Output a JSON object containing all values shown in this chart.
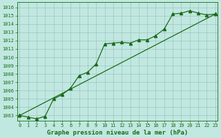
{
  "xlabel": "Graphe pression niveau de la mer (hPa)",
  "x_ticks": [
    0,
    1,
    2,
    3,
    4,
    5,
    6,
    7,
    8,
    9,
    10,
    11,
    12,
    13,
    14,
    15,
    16,
    17,
    18,
    19,
    20,
    21,
    22,
    23
  ],
  "y_ticks": [
    1003,
    1004,
    1005,
    1006,
    1007,
    1008,
    1009,
    1010,
    1011,
    1012,
    1013,
    1014,
    1015,
    1016
  ],
  "ylim": [
    1002.4,
    1016.6
  ],
  "xlim": [
    -0.3,
    23.3
  ],
  "line1_x": [
    0,
    1,
    2,
    3,
    4,
    5,
    6,
    7,
    8,
    9,
    10,
    11,
    12,
    13,
    14,
    15,
    16,
    17,
    18,
    19,
    20,
    21,
    22,
    23
  ],
  "line1_y": [
    1003.0,
    1002.8,
    1002.6,
    1002.9,
    1005.0,
    1005.5,
    1006.3,
    1007.8,
    1008.2,
    1009.2,
    1011.6,
    1011.7,
    1011.8,
    1011.7,
    1012.1,
    1012.1,
    1012.6,
    1013.4,
    1015.2,
    1015.3,
    1015.6,
    1015.3,
    1015.1,
    1015.2
  ],
  "line2_x": [
    0,
    23
  ],
  "line2_y": [
    1003.0,
    1015.2
  ],
  "bg_color": "#c0e8e0",
  "line_color": "#1a6b1a",
  "grid_color": "#99bbbb",
  "label_color": "#1a6b1a",
  "marker": "^",
  "marker_size": 3.0,
  "linewidth": 0.9,
  "linewidth2": 0.9,
  "tick_fontsize": 5.0,
  "xlabel_fontsize": 6.5
}
